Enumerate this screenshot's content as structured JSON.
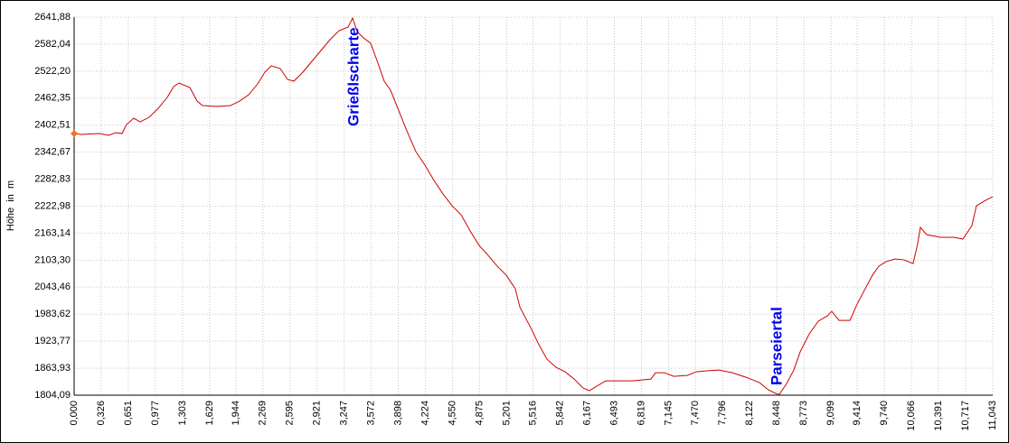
{
  "chart_data": {
    "type": "line",
    "ylabel": "Höhe  in  m",
    "x": [
      0,
      0.087,
      0.304,
      0.413,
      0.5,
      0.576,
      0.63,
      0.717,
      0.793,
      0.902,
      1.011,
      1.119,
      1.196,
      1.261,
      1.391,
      1.478,
      1.543,
      1.717,
      1.88,
      1.989,
      2.098,
      2.206,
      2.293,
      2.369,
      2.478,
      2.565,
      2.641,
      2.75,
      2.858,
      2.967,
      3.076,
      3.184,
      3.293,
      3.348,
      3.402,
      3.478,
      3.565,
      3.652,
      3.728,
      3.804,
      3.891,
      4.0,
      4.108,
      4.217,
      4.326,
      4.435,
      4.543,
      4.652,
      4.761,
      4.869,
      4.978,
      5.087,
      5.195,
      5.304,
      5.358,
      5.413,
      5.5,
      5.576,
      5.684,
      5.793,
      5.902,
      6.011,
      6.119,
      6.195,
      6.282,
      6.391,
      6.5,
      6.717,
      6.934,
      6.989,
      7.097,
      7.206,
      7.369,
      7.478,
      7.587,
      7.75,
      7.913,
      8.076,
      8.239,
      8.347,
      8.434,
      8.478,
      8.565,
      8.652,
      8.728,
      8.837,
      8.945,
      9.054,
      9.108,
      9.195,
      9.326,
      9.413,
      9.521,
      9.597,
      9.673,
      9.76,
      9.869,
      9.978,
      10.086,
      10.141,
      10.173,
      10.249,
      10.412,
      10.575,
      10.684,
      10.793,
      10.847,
      10.956,
      11.043
    ],
    "series": [
      {
        "name": "Höhe",
        "color": "#cc0000",
        "values": [
          2383.9,
          2381.9,
          2383.9,
          2379.9,
          2385.9,
          2383.9,
          2403.9,
          2417.9,
          2409.9,
          2419.9,
          2439.9,
          2463.9,
          2487.9,
          2495.9,
          2485.9,
          2455.9,
          2445.9,
          2443.9,
          2445.9,
          2455.9,
          2469.9,
          2493.9,
          2519.9,
          2533.9,
          2527.9,
          2503.9,
          2499.9,
          2519.9,
          2543.9,
          2567.9,
          2591.9,
          2611.9,
          2619.9,
          2639.9,
          2609.9,
          2595.9,
          2583.9,
          2539.9,
          2499.9,
          2479.9,
          2439.9,
          2389.9,
          2343.9,
          2313.9,
          2279.9,
          2249.9,
          2223.9,
          2203.9,
          2167.9,
          2135.9,
          2113.9,
          2089.9,
          2069.9,
          2039.9,
          1999.9,
          1979.9,
          1949.9,
          1919.9,
          1883.9,
          1865.9,
          1855.9,
          1839.9,
          1819.9,
          1813.9,
          1823.9,
          1835.9,
          1835.9,
          1835.9,
          1839.9,
          1853.9,
          1853.9,
          1845.9,
          1847.9,
          1855.9,
          1857.9,
          1859.9,
          1853.9,
          1843.9,
          1831.9,
          1815.9,
          1807.9,
          1805.9,
          1829.9,
          1859.9,
          1899.9,
          1939.9,
          1967.9,
          1979.9,
          1989.9,
          1969.9,
          1969.9,
          2005.9,
          2043.9,
          2069.9,
          2089.9,
          2099.9,
          2105.9,
          2103.9,
          2095.9,
          2139.9,
          2175.9,
          2159.9,
          2153.9,
          2153.9,
          2149.9,
          2179.9,
          2223.9,
          2235.9,
          2243.9
        ]
      }
    ],
    "annotations": [
      {
        "text": "Grießlscharte",
        "x": 3.348,
        "y": 2639.9,
        "color": "#0000ee"
      },
      {
        "text": "Parseiertal",
        "x": 8.478,
        "y": 1805.9,
        "color": "#0000ee"
      }
    ],
    "xlim": [
      0,
      11.043
    ],
    "ylim": [
      1804.09,
      2641.88
    ],
    "xticks": [
      {
        "value": 0,
        "label": "0,000"
      },
      {
        "value": 0.326,
        "label": "0,326"
      },
      {
        "value": 0.651,
        "label": "0,651"
      },
      {
        "value": 0.977,
        "label": "0,977"
      },
      {
        "value": 1.303,
        "label": "1,303"
      },
      {
        "value": 1.629,
        "label": "1,629"
      },
      {
        "value": 1.944,
        "label": "1,944"
      },
      {
        "value": 2.269,
        "label": "2,269"
      },
      {
        "value": 2.595,
        "label": "2,595"
      },
      {
        "value": 2.921,
        "label": "2,921"
      },
      {
        "value": 3.247,
        "label": "3,247"
      },
      {
        "value": 3.572,
        "label": "3,572"
      },
      {
        "value": 3.898,
        "label": "3,898"
      },
      {
        "value": 4.224,
        "label": "4,224"
      },
      {
        "value": 4.55,
        "label": "4,550"
      },
      {
        "value": 4.875,
        "label": "4,875"
      },
      {
        "value": 5.201,
        "label": "5,201"
      },
      {
        "value": 5.516,
        "label": "5,516"
      },
      {
        "value": 5.842,
        "label": "5,842"
      },
      {
        "value": 6.167,
        "label": "6,167"
      },
      {
        "value": 6.493,
        "label": "6,493"
      },
      {
        "value": 6.819,
        "label": "6,819"
      },
      {
        "value": 7.145,
        "label": "7,145"
      },
      {
        "value": 7.47,
        "label": "7,470"
      },
      {
        "value": 7.796,
        "label": "7,796"
      },
      {
        "value": 8.122,
        "label": "8,122"
      },
      {
        "value": 8.448,
        "label": "8,448"
      },
      {
        "value": 8.773,
        "label": "8,773"
      },
      {
        "value": 9.099,
        "label": "9,099"
      },
      {
        "value": 9.414,
        "label": "9,414"
      },
      {
        "value": 9.74,
        "label": "9,740"
      },
      {
        "value": 10.066,
        "label": "10,066"
      },
      {
        "value": 10.391,
        "label": "10,391"
      },
      {
        "value": 10.717,
        "label": "10,717"
      },
      {
        "value": 11.043,
        "label": "11,043"
      }
    ],
    "yticks": [
      {
        "value": 1804.09,
        "label": "1804,09"
      },
      {
        "value": 1863.93,
        "label": "1863,93"
      },
      {
        "value": 1923.77,
        "label": "1923,77"
      },
      {
        "value": 1983.62,
        "label": "1983,62"
      },
      {
        "value": 2043.46,
        "label": "2043,46"
      },
      {
        "value": 2103.3,
        "label": "2103,30"
      },
      {
        "value": 2163.14,
        "label": "2163,14"
      },
      {
        "value": 2222.98,
        "label": "2222,98"
      },
      {
        "value": 2282.83,
        "label": "2282,83"
      },
      {
        "value": 2342.67,
        "label": "2342,67"
      },
      {
        "value": 2402.51,
        "label": "2402,51"
      },
      {
        "value": 2462.35,
        "label": "2462,35"
      },
      {
        "value": 2522.2,
        "label": "2522,20"
      },
      {
        "value": 2582.04,
        "label": "2582,04"
      },
      {
        "value": 2641.88,
        "label": "2641,88"
      }
    ],
    "grid": true
  }
}
